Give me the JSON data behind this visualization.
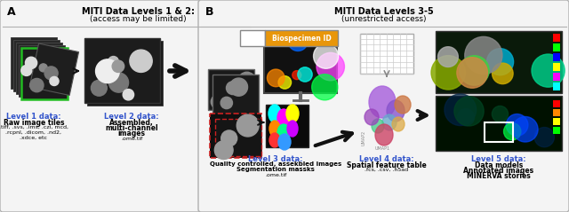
{
  "fig_width": 6.4,
  "fig_height": 2.39,
  "dpi": 100,
  "orange_color": "#E8960A",
  "blue_label_color": "#3355cc",
  "panel_A_title": "MITI Data Levels 1 & 2:",
  "panel_A_subtitle": "(access may be limited)",
  "panel_B_title": "MITI Data Levels 3-5",
  "panel_B_subtitle": "(unrestricted access)",
  "biospecimen_label": "Biospecimen ID",
  "level1_title": "Level 1 data:",
  "level1_line1": "Raw image tiles",
  "level1_line2": ".tiff, .svs, .ims, .czi, mcd,",
  "level1_line3": ".rcpnl, .dicom, .nd2,",
  "level1_line4": ".xdce, etc",
  "level2_title": "Level 2 data:",
  "level2_line1": "Assembled,",
  "level2_line2": "multi-channel",
  "level2_line3": "images",
  "level2_line4": ".ome.tif",
  "level3_title": "Level 3 data:",
  "level3_line1": "Quality controlled, assekbled images",
  "level3_line2": "Segmentation massks",
  "level3_line3": ".ome.tif",
  "level4_title": "Level 4 data:",
  "level4_line1": "Spatial feature table",
  "level4_line2": ".fcs, .csv, .h5ad",
  "level5_title": "Level 5 data:",
  "level5_line1": "Data models",
  "level5_line2": "Annotated images",
  "level5_line3": "MINERVA stories",
  "arrow_color": "#111111",
  "green_border": "#22bb22",
  "red_dashed_color": "#cc2222"
}
